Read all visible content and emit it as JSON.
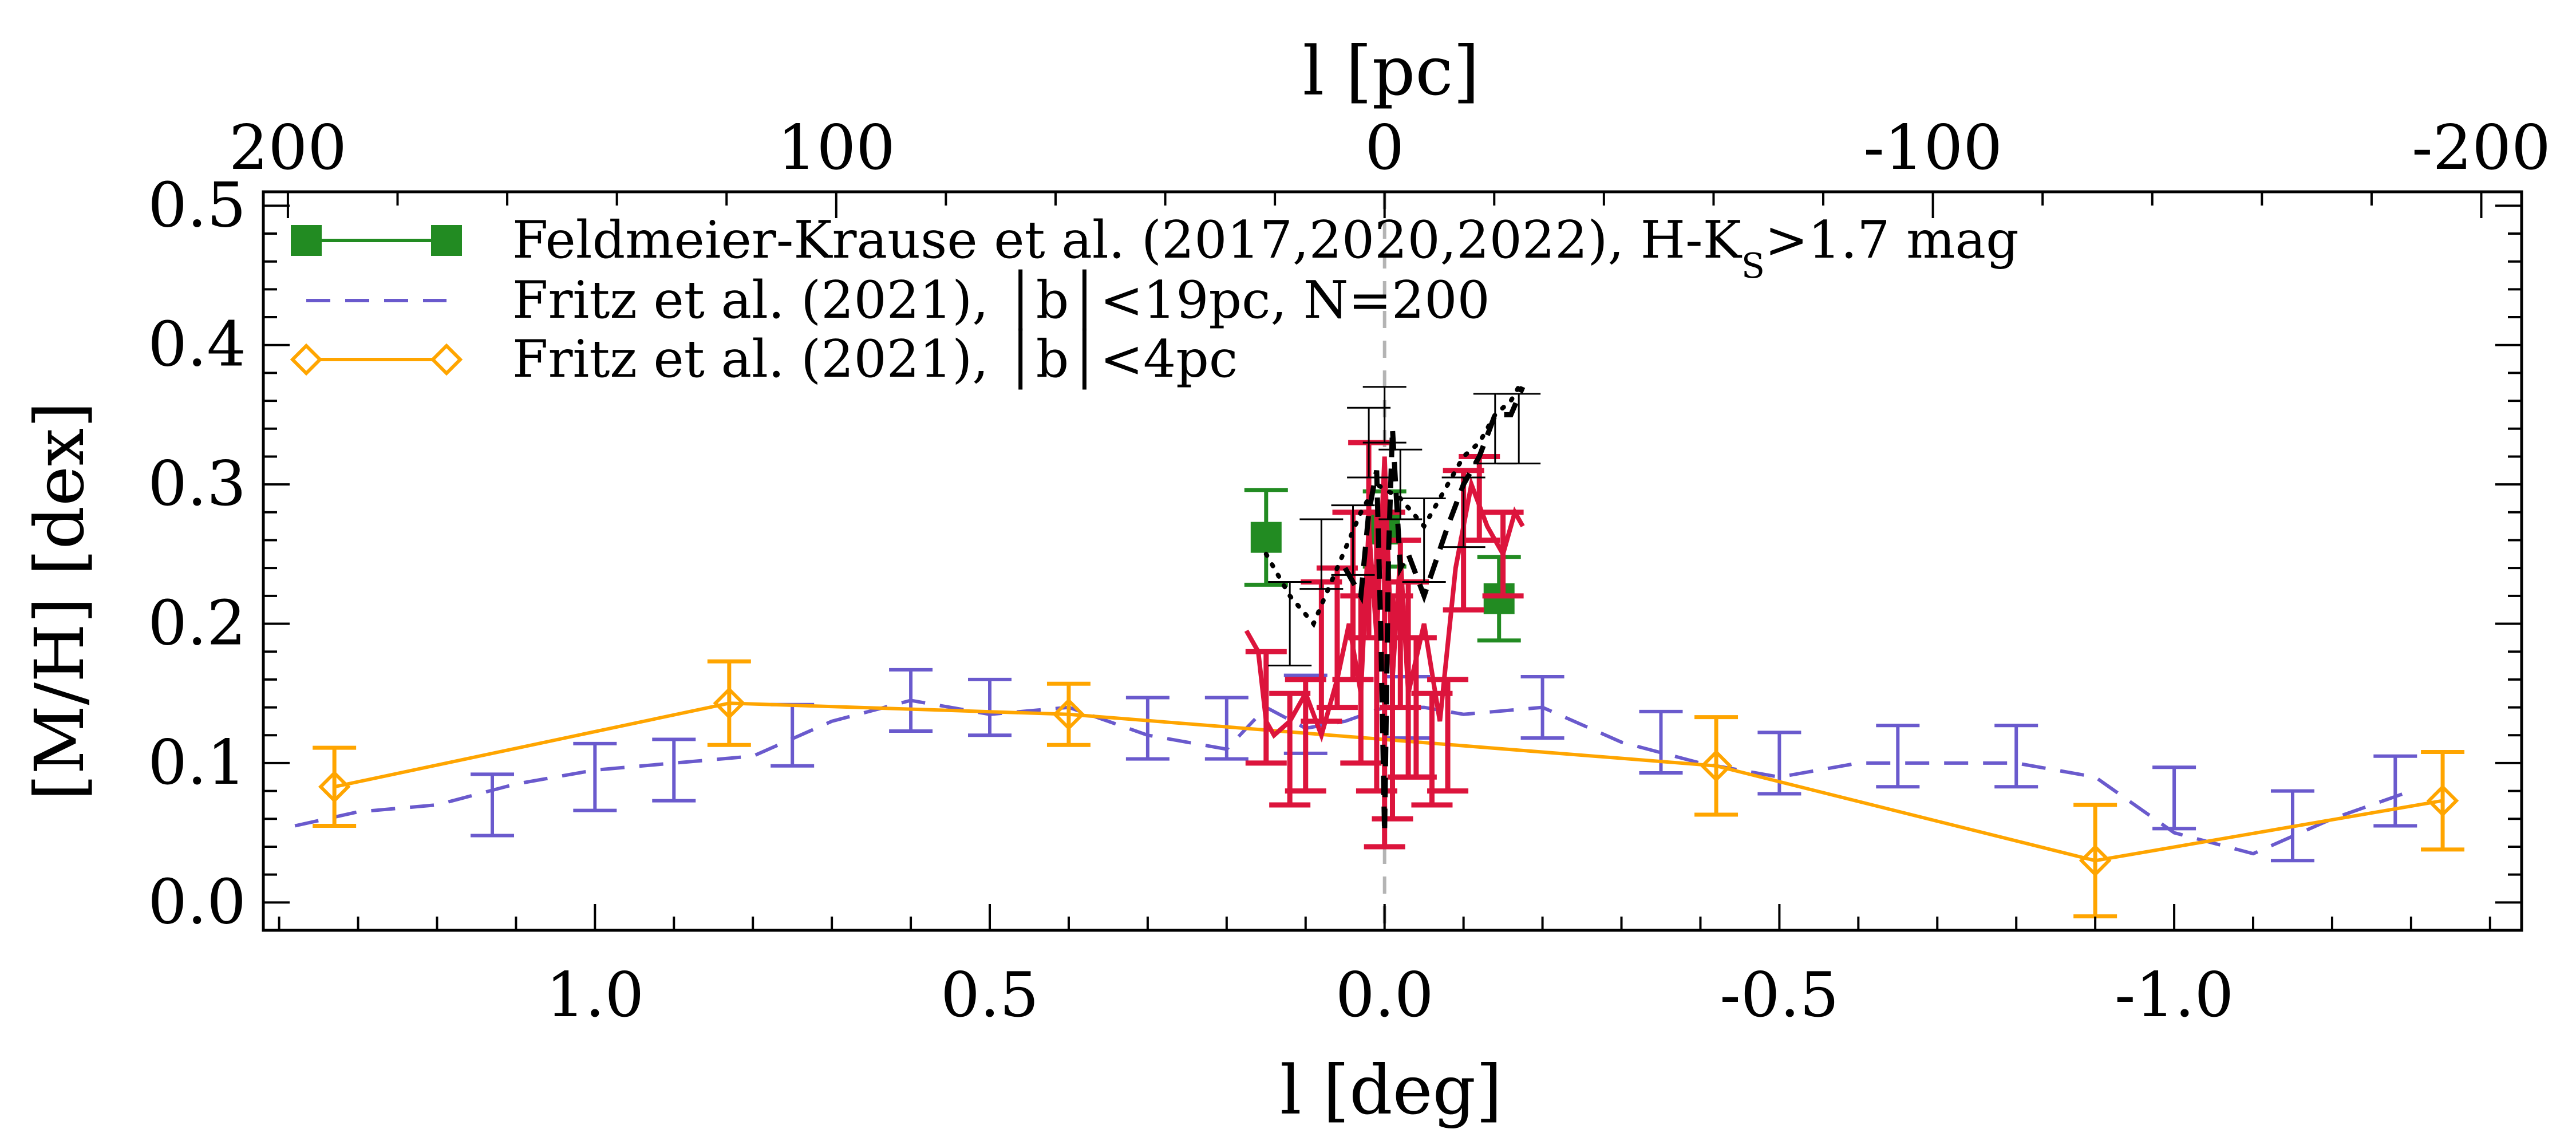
{
  "chart_data": {
    "type": "scatter",
    "xlabel": "l [deg]",
    "ylabel": "[M/H] [dex]",
    "top_xlabel": "l [pc]",
    "xlim": [
      1.42,
      -1.44
    ],
    "ylim": [
      -0.02,
      0.51
    ],
    "x_reversed": true,
    "x_ticks": [
      1.0,
      0.5,
      0.0,
      -0.5,
      -1.0
    ],
    "x_tick_labels": [
      "1.0",
      "0.5",
      "0.0",
      "-0.5",
      "-1.0"
    ],
    "y_ticks": [
      0.0,
      0.1,
      0.2,
      0.3,
      0.4,
      0.5
    ],
    "y_tick_labels": [
      "0.0",
      "0.1",
      "0.2",
      "0.3",
      "0.4",
      "0.5"
    ],
    "top_ticks_pc": [
      200,
      100,
      0,
      -100,
      -200
    ],
    "top_tick_labels": [
      "200",
      "100",
      "0",
      "-100",
      "-200"
    ],
    "pc_per_deg": 144,
    "grid": false,
    "legend_position": "top-left",
    "reference_line_x": 0.0,
    "colors": {
      "green": "#228b22",
      "blue": "#6a5acd",
      "orange": "#ffa500",
      "red": "#dc143c",
      "black": "#000000",
      "refline": "#b4b4b4"
    },
    "legend": [
      {
        "key": "green",
        "text": "Feldmeier-Krause et al. (2017,2020,2022), H-K",
        "sub": "S",
        "after": ">1.7 mag"
      },
      {
        "key": "blue",
        "text": "Fritz et al. (2021), │b│<19pc, N=200"
      },
      {
        "key": "orange",
        "text": "Fritz et al. (2021), │b│<4pc"
      }
    ],
    "series": [
      {
        "name": "Feldmeier-Krause et al. (2017,2020,2022), H-KS>1.7 mag",
        "key": "green",
        "style": "markers",
        "x": [
          0.15,
          0.0,
          -0.145
        ],
        "y": [
          0.262,
          0.268,
          0.218
        ],
        "yerr": [
          0.034,
          0.027,
          0.03
        ]
      },
      {
        "name": "Fritz et al. (2021), |b|<19pc, N=200",
        "key": "blue",
        "style": "dashed",
        "line_x": [
          1.38,
          1.3,
          1.2,
          1.1,
          1.0,
          0.9,
          0.8,
          0.7,
          0.6,
          0.5,
          0.4,
          0.3,
          0.2,
          0.15,
          0.1,
          0.05,
          0.0,
          -0.05,
          -0.1,
          -0.2,
          -0.3,
          -0.4,
          -0.5,
          -0.6,
          -0.7,
          -0.8,
          -0.9,
          -1.0,
          -1.1,
          -1.2,
          -1.3
        ],
        "line_y": [
          0.055,
          0.065,
          0.07,
          0.085,
          0.095,
          0.1,
          0.105,
          0.13,
          0.145,
          0.135,
          0.14,
          0.12,
          0.11,
          0.14,
          0.125,
          0.13,
          0.14,
          0.14,
          0.135,
          0.14,
          0.115,
          0.1,
          0.09,
          0.1,
          0.1,
          0.1,
          0.09,
          0.05,
          0.035,
          0.06,
          0.08
        ],
        "err_x": [
          1.13,
          1.0,
          0.9,
          0.75,
          0.6,
          0.5,
          0.3,
          0.2,
          0.1,
          -0.03,
          -0.2,
          -0.35,
          -0.5,
          -0.65,
          -0.8,
          -1.0,
          -1.15,
          -1.28
        ],
        "err_y": [
          0.07,
          0.09,
          0.095,
          0.12,
          0.145,
          0.14,
          0.125,
          0.125,
          0.135,
          0.14,
          0.14,
          0.115,
          0.1,
          0.105,
          0.105,
          0.075,
          0.055,
          0.08
        ],
        "err": [
          0.022,
          0.024,
          0.022,
          0.022,
          0.022,
          0.02,
          0.022,
          0.022,
          0.028,
          0.022,
          0.022,
          0.022,
          0.022,
          0.022,
          0.022,
          0.022,
          0.025,
          0.025
        ]
      },
      {
        "name": "Fritz et al. (2021), |b|<4pc",
        "key": "orange",
        "style": "line-diamond",
        "x": [
          1.33,
          0.83,
          0.4,
          -0.42,
          -0.9,
          -1.34
        ],
        "y": [
          0.083,
          0.143,
          0.135,
          0.098,
          0.03,
          0.073
        ],
        "yerr": [
          0.028,
          0.03,
          0.022,
          0.035,
          0.04,
          0.035
        ]
      },
      {
        "key": "red",
        "style": "curve-errorbars",
        "line_x": [
          0.175,
          0.16,
          0.15,
          0.14,
          0.12,
          0.1,
          0.08,
          0.06,
          0.045,
          0.03,
          0.02,
          0.01,
          0.0,
          -0.01,
          -0.02,
          -0.03,
          -0.05,
          -0.07,
          -0.09,
          -0.11,
          -0.13,
          -0.15,
          -0.165,
          -0.175
        ],
        "line_y": [
          0.195,
          0.18,
          0.13,
          0.12,
          0.13,
          0.15,
          0.12,
          0.16,
          0.2,
          0.15,
          0.27,
          0.19,
          0.32,
          0.16,
          0.25,
          0.15,
          0.2,
          0.13,
          0.24,
          0.3,
          0.27,
          0.25,
          0.28,
          0.27
        ],
        "err_x": [
          0.15,
          0.12,
          0.1,
          0.08,
          0.06,
          0.04,
          0.03,
          0.02,
          0.01,
          0.0,
          -0.01,
          -0.02,
          -0.03,
          -0.04,
          -0.06,
          -0.08,
          -0.1,
          -0.12,
          -0.15
        ],
        "err_y": [
          0.14,
          0.11,
          0.12,
          0.18,
          0.19,
          0.22,
          0.16,
          0.26,
          0.18,
          0.16,
          0.14,
          0.2,
          0.16,
          0.14,
          0.11,
          0.12,
          0.26,
          0.29,
          0.25
        ],
        "err": [
          0.04,
          0.04,
          0.04,
          0.05,
          0.05,
          0.06,
          0.06,
          0.07,
          0.1,
          0.12,
          0.08,
          0.06,
          0.07,
          0.05,
          0.04,
          0.04,
          0.05,
          0.03,
          0.03
        ]
      },
      {
        "key": "black",
        "style": "dotted-dashed-errorbars",
        "dotted_x": [
          0.15,
          0.12,
          0.09,
          0.06,
          0.03,
          0.01,
          -0.02,
          -0.05,
          -0.08,
          -0.1,
          -0.12,
          -0.14,
          -0.16,
          -0.17
        ],
        "dotted_y": [
          0.25,
          0.22,
          0.2,
          0.24,
          0.28,
          0.3,
          0.29,
          0.27,
          0.3,
          0.32,
          0.33,
          0.35,
          0.36,
          0.37
        ],
        "dashed_x": [
          0.05,
          0.03,
          0.02,
          0.01,
          0.005,
          0.0,
          -0.005,
          -0.01,
          -0.02,
          -0.03,
          -0.05,
          -0.08,
          -0.1,
          -0.12,
          -0.14,
          -0.16,
          -0.175
        ],
        "dashed_y": [
          0.24,
          0.22,
          0.28,
          0.31,
          0.2,
          0.05,
          0.25,
          0.34,
          0.24,
          0.25,
          0.22,
          0.27,
          0.3,
          0.32,
          0.35,
          0.35,
          0.37
        ],
        "err_x": [
          0.12,
          0.08,
          0.04,
          0.02,
          0.0,
          -0.02,
          -0.05,
          -0.1,
          -0.14,
          -0.17
        ],
        "err_y": [
          0.2,
          0.25,
          0.26,
          0.33,
          0.35,
          0.3,
          0.26,
          0.28,
          0.34,
          0.34
        ],
        "err": [
          0.03,
          0.025,
          0.025,
          0.025,
          0.02,
          0.025,
          0.03,
          0.025,
          0.025,
          0.025
        ]
      }
    ]
  }
}
